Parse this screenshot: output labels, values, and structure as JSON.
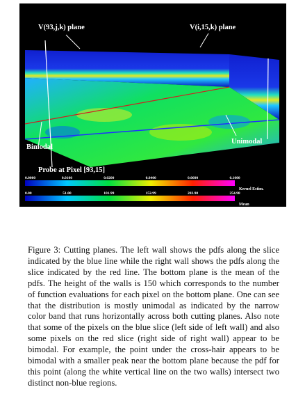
{
  "figure": {
    "labels": {
      "left_plane": "V(93,j,k) plane",
      "right_plane": "V(i,15,k) plane",
      "bimodal": "Bimodal",
      "unimodal": "Unimodal",
      "probe": "Probe at Pixel [93,15]"
    },
    "colorbars": [
      {
        "name": "Kernel Estim.",
        "ticks": [
          "0.0000",
          "0.0100",
          "0.0200",
          "0.0400",
          "0.0600",
          "0.1000"
        ]
      },
      {
        "name": "Mean",
        "ticks": [
          "0.00",
          "51.00",
          "101.99",
          "152.99",
          "203.98",
          "254.98"
        ]
      }
    ],
    "caption": "Figure 3: Cutting planes. The left wall shows the pdfs along the slice indicated by the blue line while the right wall shows the pdfs along the slice indicated by the red line. The bottom plane is the mean of the pdfs. The height of the walls is 150 which corresponds to the number of function evaluations for each pixel on the bottom plane. One can see that the distribution is mostly unimodal as indicated by the narrow color band that runs horizontally across both cutting planes. Also note that some of the pixels on the blue slice (left side of left wall) and also some pixels on the red slice (right side of right wall) appear to be bimodal. For example, the point under the cross-hair appears to be bimodal with a smaller peak near the bottom plane because the pdf for this point (along the white vertical line on the two walls) intersect two distinct non-blue regions."
  }
}
